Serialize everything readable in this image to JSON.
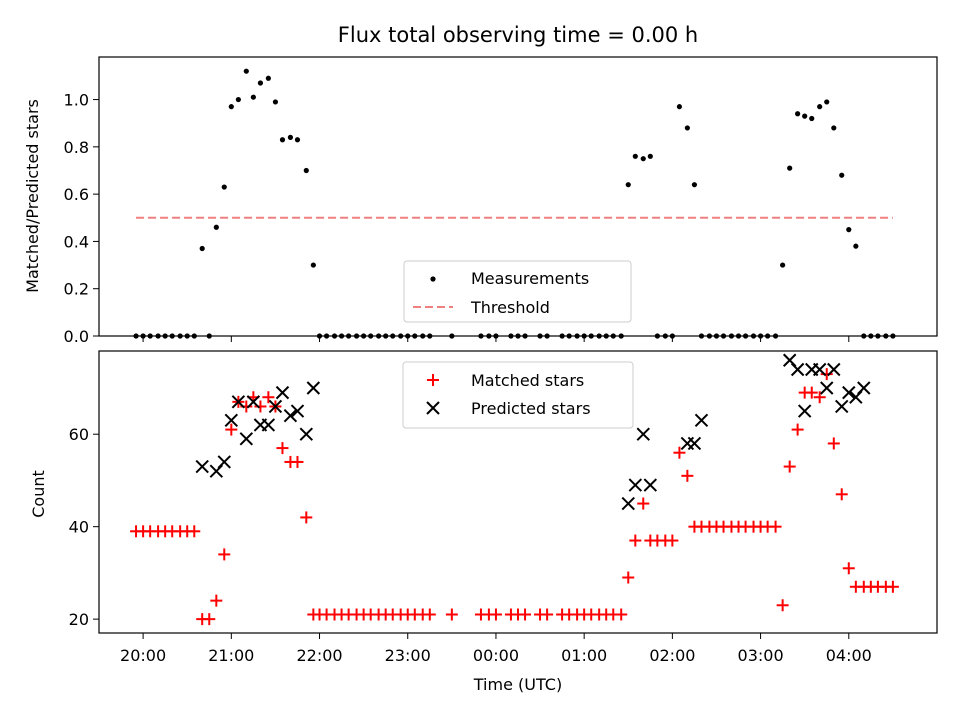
{
  "chart_data": [
    {
      "type": "scatter",
      "title": "Flux total observing time = 0.00 h",
      "xlabel": "",
      "ylabel": "Matched/Predicted stars",
      "xlim": [
        -0.5,
        9.0
      ],
      "ylim": [
        0,
        1.18
      ],
      "yticks": [
        0.0,
        0.2,
        0.4,
        0.6,
        0.8,
        1.0
      ],
      "ytick_labels": [
        "0.0",
        "0.2",
        "0.4",
        "0.6",
        "0.8",
        "1.0"
      ],
      "legend": "bottom-center",
      "series": [
        {
          "name": "Measurements",
          "marker": "dot",
          "color": "#000000",
          "x": [
            -0.08,
            0.0,
            0.08,
            0.17,
            0.25,
            0.33,
            0.42,
            0.5,
            0.58,
            0.67,
            0.75,
            0.83,
            0.92,
            1.0,
            1.08,
            1.17,
            1.25,
            1.33,
            1.42,
            1.5,
            1.58,
            1.67,
            1.75,
            1.85,
            1.93,
            2.0,
            2.08,
            2.17,
            2.25,
            2.33,
            2.42,
            2.5,
            2.58,
            2.67,
            2.75,
            2.83,
            2.92,
            3.0,
            3.08,
            3.17,
            3.25,
            3.5,
            3.83,
            3.92,
            4.0,
            4.17,
            4.25,
            4.33,
            4.5,
            4.58,
            4.75,
            4.83,
            4.92,
            5.0,
            5.08,
            5.17,
            5.25,
            5.33,
            5.42,
            5.5,
            5.58,
            5.67,
            5.75,
            5.83,
            5.92,
            6.0,
            6.08,
            6.17,
            6.25,
            6.33,
            6.42,
            6.5,
            6.58,
            6.67,
            6.75,
            6.83,
            6.92,
            7.0,
            7.08,
            7.17,
            7.25,
            7.33,
            7.42,
            7.5,
            7.58,
            7.67,
            7.75,
            7.83,
            7.92,
            8.0,
            8.08,
            8.17,
            8.25,
            8.33,
            8.42,
            8.5
          ],
          "y": [
            0,
            0,
            0,
            0,
            0,
            0,
            0,
            0,
            0,
            0.37,
            0,
            0.46,
            0.63,
            0.97,
            1.0,
            1.12,
            1.01,
            1.07,
            1.09,
            0.99,
            0.83,
            0.84,
            0.83,
            0.7,
            0.3,
            0,
            0,
            0,
            0,
            0,
            0,
            0,
            0,
            0,
            0,
            0,
            0,
            0,
            0,
            0,
            0,
            0,
            0,
            0,
            0,
            0,
            0,
            0,
            0,
            0,
            0,
            0,
            0,
            0,
            0,
            0,
            0,
            0,
            0,
            0.64,
            0.76,
            0.75,
            0.76,
            0,
            0,
            0,
            0.97,
            0.88,
            0.64,
            0,
            0,
            0,
            0,
            0,
            0,
            0,
            0,
            0,
            0,
            0,
            0.3,
            0.71,
            0.94,
            0.93,
            0.92,
            0.97,
            0.99,
            0.88,
            0.68,
            0.45,
            0.38,
            0,
            0,
            0,
            0,
            0
          ]
        },
        {
          "name": "Threshold",
          "marker": "dashed-line",
          "color": "#f08080",
          "x": [
            -0.08,
            8.5
          ],
          "y": [
            0.5,
            0.5
          ]
        }
      ]
    },
    {
      "type": "scatter",
      "title": "",
      "xlabel": "Time (UTC)",
      "ylabel": "Count",
      "xlim": [
        -0.5,
        9.0
      ],
      "ylim": [
        17,
        78
      ],
      "yticks": [
        20,
        40,
        60
      ],
      "ytick_labels": [
        "20",
        "40",
        "60"
      ],
      "xticks": [
        0,
        1,
        2,
        3,
        4,
        5,
        6,
        7,
        8
      ],
      "xtick_labels": [
        "20:00",
        "21:00",
        "22:00",
        "23:00",
        "00:00",
        "01:00",
        "02:00",
        "03:00",
        "04:00"
      ],
      "legend": "top-center",
      "series": [
        {
          "name": "Matched stars",
          "marker": "plus",
          "color": "#ff0000",
          "x": [
            -0.08,
            0.0,
            0.08,
            0.17,
            0.25,
            0.33,
            0.42,
            0.5,
            0.58,
            0.67,
            0.75,
            0.83,
            0.92,
            1.0,
            1.08,
            1.17,
            1.25,
            1.33,
            1.42,
            1.5,
            1.58,
            1.67,
            1.75,
            1.85,
            1.93,
            2.0,
            2.08,
            2.17,
            2.25,
            2.33,
            2.42,
            2.5,
            2.58,
            2.67,
            2.75,
            2.83,
            2.92,
            3.0,
            3.08,
            3.17,
            3.25,
            3.5,
            3.83,
            3.92,
            4.0,
            4.17,
            4.25,
            4.33,
            4.5,
            4.58,
            4.75,
            4.83,
            4.92,
            5.0,
            5.08,
            5.17,
            5.25,
            5.33,
            5.42,
            5.5,
            5.58,
            5.67,
            5.75,
            5.83,
            5.92,
            6.0,
            6.08,
            6.17,
            6.25,
            6.33,
            6.42,
            6.5,
            6.58,
            6.67,
            6.75,
            6.83,
            6.92,
            7.0,
            7.08,
            7.17,
            7.25,
            7.33,
            7.42,
            7.5,
            7.58,
            7.67,
            7.75,
            7.83,
            7.92,
            8.0,
            8.08,
            8.17,
            8.25,
            8.33,
            8.42,
            8.5
          ],
          "y": [
            39,
            39,
            39,
            39,
            39,
            39,
            39,
            39,
            39,
            20,
            20,
            24,
            34,
            61,
            67,
            66,
            68,
            66,
            68,
            66,
            57,
            54,
            54,
            42,
            21,
            21,
            21,
            21,
            21,
            21,
            21,
            21,
            21,
            21,
            21,
            21,
            21,
            21,
            21,
            21,
            21,
            21,
            21,
            21,
            21,
            21,
            21,
            21,
            21,
            21,
            21,
            21,
            21,
            21,
            21,
            21,
            21,
            21,
            21,
            29,
            37,
            45,
            37,
            37,
            37,
            37,
            56,
            51,
            40,
            40,
            40,
            40,
            40,
            40,
            40,
            40,
            40,
            40,
            40,
            40,
            23,
            53,
            61,
            69,
            69,
            68,
            73,
            58,
            47,
            31,
            27,
            27,
            27,
            27,
            27,
            27
          ]
        },
        {
          "name": "Predicted stars",
          "marker": "x",
          "color": "#000000",
          "x": [
            0.67,
            0.83,
            0.92,
            1.0,
            1.08,
            1.17,
            1.25,
            1.33,
            1.42,
            1.5,
            1.58,
            1.67,
            1.75,
            1.85,
            1.93,
            5.5,
            5.58,
            5.67,
            5.75,
            6.17,
            6.25,
            6.33,
            7.33,
            7.42,
            7.5,
            7.58,
            7.67,
            7.75,
            7.83,
            7.92,
            8.0,
            8.08,
            8.17
          ],
          "y": [
            53,
            52,
            54,
            63,
            67,
            59,
            67,
            62,
            62,
            66,
            69,
            64,
            65,
            60,
            70,
            45,
            49,
            60,
            49,
            58,
            58,
            63,
            76,
            74,
            65,
            74,
            74,
            70,
            74,
            66,
            69,
            68,
            70
          ]
        }
      ]
    }
  ]
}
